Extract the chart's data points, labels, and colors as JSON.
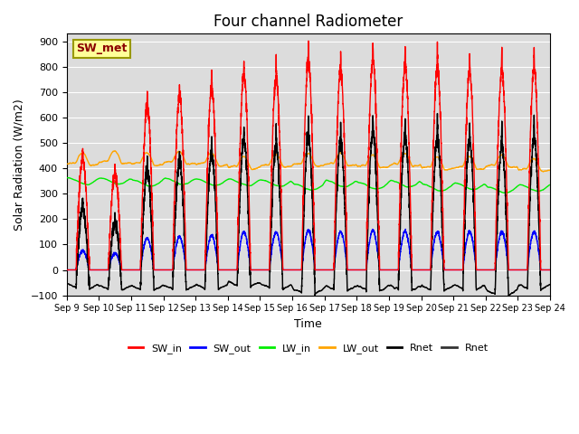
{
  "title": "Four channel Radiometer",
  "xlabel": "Time",
  "ylabel": "Solar Radiation (W/m2)",
  "ylim": [
    -100,
    930
  ],
  "annotation": "SW_met",
  "bg_color": "#dcdcdc",
  "legend": [
    "SW_in",
    "SW_out",
    "LW_in",
    "LW_out",
    "Rnet",
    "Rnet"
  ],
  "line_colors": [
    "red",
    "blue",
    "#00ee00",
    "orange",
    "black",
    "#333333"
  ],
  "line_widths": [
    1.0,
    1.0,
    1.0,
    1.0,
    1.0,
    1.0
  ],
  "n_days": 15,
  "start_day": 9,
  "gridcolor": "white",
  "title_fontsize": 12,
  "yticks": [
    -100,
    0,
    100,
    200,
    300,
    400,
    500,
    600,
    700,
    800,
    900
  ]
}
